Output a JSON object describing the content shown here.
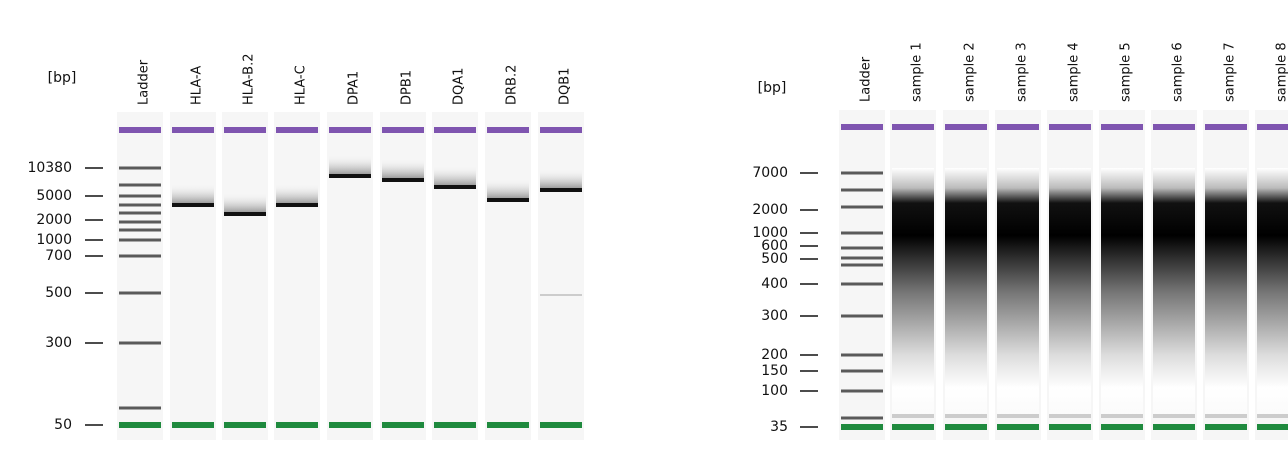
{
  "left": {
    "unit": "[bp]",
    "lanes": [
      "Ladder",
      "HLA-A",
      "HLA-B.2",
      "HLA-C",
      "DPA1",
      "DPB1",
      "DQA1",
      "DRB.2",
      "DQB1"
    ],
    "sizes": [
      10380,
      5000,
      2000,
      1000,
      700,
      500,
      300,
      50
    ]
  },
  "right": {
    "unit": "[bp]",
    "lanes": [
      "Ladder",
      "sample 1",
      "sample 2",
      "sample 3",
      "sample 4",
      "sample 5",
      "sample 6",
      "sample 7",
      "sample 8"
    ],
    "sizes": [
      7000,
      2000,
      1000,
      600,
      500,
      400,
      300,
      200,
      150,
      100,
      35
    ]
  }
}
